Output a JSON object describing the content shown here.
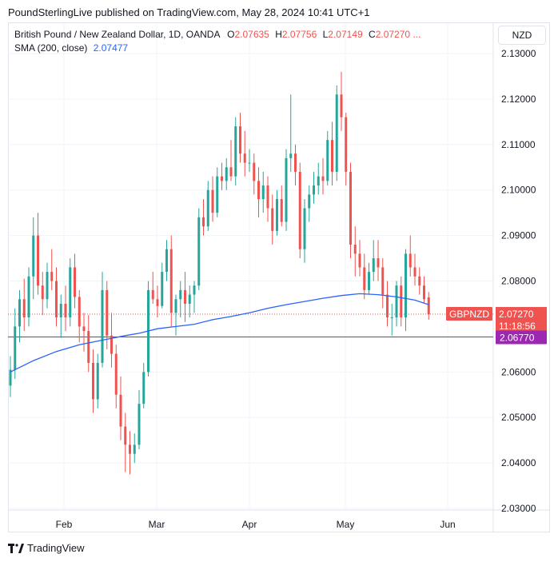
{
  "header": {
    "published": "PoundSterlingLive published on TradingView.com, May 28, 2024 10:41 UTC+1"
  },
  "legend": {
    "symbol": "British Pound / New Zealand Dollar, 1D, OANDA",
    "o_label": "O",
    "o_value": "2.07635",
    "h_label": "H",
    "h_value": "2.07756",
    "l_label": "L",
    "l_value": "2.07149",
    "c_label": "C",
    "c_value": "2.07270",
    "more": "...",
    "sma_label": "SMA (200, close)",
    "sma_value": "2.07477"
  },
  "currency_button": "NZD",
  "price_tags": {
    "symbol_tag": "GBPNZD",
    "last_price": "2.07270",
    "countdown": "11:18:56",
    "level_price": "2.06770"
  },
  "brand": {
    "name": "TradingView"
  },
  "colors": {
    "up": "#26a69a",
    "down": "#ef5350",
    "sma": "#2962ff",
    "level": "#9c27b0",
    "grid": "#f0f3fa"
  },
  "chart_data": {
    "type": "candlestick",
    "y_ticks": [
      "2.13000",
      "2.12000",
      "2.11000",
      "2.10000",
      "2.09000",
      "2.08000",
      "2.06000",
      "2.05000",
      "2.04000",
      "2.03000"
    ],
    "x_ticks": [
      "Feb",
      "Mar",
      "Apr",
      "May",
      "Jun"
    ],
    "ylim": [
      2.0295,
      2.1335
    ],
    "horizontal_level": 2.0677,
    "last_close": 2.0727,
    "candles": [
      {
        "o": 2.057,
        "h": 2.0635,
        "l": 2.0545,
        "c": 2.0605
      },
      {
        "o": 2.0605,
        "h": 2.074,
        "l": 2.0585,
        "c": 2.07
      },
      {
        "o": 2.07,
        "h": 2.078,
        "l": 2.0665,
        "c": 2.076
      },
      {
        "o": 2.076,
        "h": 2.0805,
        "l": 2.069,
        "c": 2.072
      },
      {
        "o": 2.072,
        "h": 2.083,
        "l": 2.07,
        "c": 2.081
      },
      {
        "o": 2.081,
        "h": 2.094,
        "l": 2.076,
        "c": 2.09
      },
      {
        "o": 2.09,
        "h": 2.095,
        "l": 2.077,
        "c": 2.079
      },
      {
        "o": 2.079,
        "h": 2.082,
        "l": 2.0725,
        "c": 2.076
      },
      {
        "o": 2.076,
        "h": 2.084,
        "l": 2.074,
        "c": 2.082
      },
      {
        "o": 2.082,
        "h": 2.087,
        "l": 2.078,
        "c": 2.08
      },
      {
        "o": 2.08,
        "h": 2.083,
        "l": 2.07,
        "c": 2.072
      },
      {
        "o": 2.072,
        "h": 2.077,
        "l": 2.0675,
        "c": 2.075
      },
      {
        "o": 2.075,
        "h": 2.079,
        "l": 2.069,
        "c": 2.072
      },
      {
        "o": 2.072,
        "h": 2.085,
        "l": 2.07,
        "c": 2.083
      },
      {
        "o": 2.083,
        "h": 2.086,
        "l": 2.074,
        "c": 2.0765
      },
      {
        "o": 2.0765,
        "h": 2.078,
        "l": 2.0665,
        "c": 2.07
      },
      {
        "o": 2.07,
        "h": 2.073,
        "l": 2.0645,
        "c": 2.069
      },
      {
        "o": 2.069,
        "h": 2.0725,
        "l": 2.06,
        "c": 2.062
      },
      {
        "o": 2.062,
        "h": 2.065,
        "l": 2.051,
        "c": 2.054
      },
      {
        "o": 2.054,
        "h": 2.064,
        "l": 2.052,
        "c": 2.062
      },
      {
        "o": 2.062,
        "h": 2.082,
        "l": 2.061,
        "c": 2.078
      },
      {
        "o": 2.078,
        "h": 2.08,
        "l": 2.065,
        "c": 2.068
      },
      {
        "o": 2.068,
        "h": 2.073,
        "l": 2.061,
        "c": 2.064
      },
      {
        "o": 2.064,
        "h": 2.066,
        "l": 2.052,
        "c": 2.055
      },
      {
        "o": 2.055,
        "h": 2.059,
        "l": 2.045,
        "c": 2.048
      },
      {
        "o": 2.048,
        "h": 2.051,
        "l": 2.038,
        "c": 2.044
      },
      {
        "o": 2.044,
        "h": 2.047,
        "l": 2.0375,
        "c": 2.042
      },
      {
        "o": 2.042,
        "h": 2.0465,
        "l": 2.04,
        "c": 2.044
      },
      {
        "o": 2.044,
        "h": 2.056,
        "l": 2.043,
        "c": 2.053
      },
      {
        "o": 2.053,
        "h": 2.062,
        "l": 2.052,
        "c": 2.06
      },
      {
        "o": 2.06,
        "h": 2.08,
        "l": 2.059,
        "c": 2.078
      },
      {
        "o": 2.078,
        "h": 2.082,
        "l": 2.075,
        "c": 2.076
      },
      {
        "o": 2.076,
        "h": 2.079,
        "l": 2.072,
        "c": 2.0745
      },
      {
        "o": 2.0745,
        "h": 2.084,
        "l": 2.074,
        "c": 2.082
      },
      {
        "o": 2.082,
        "h": 2.089,
        "l": 2.08,
        "c": 2.087
      },
      {
        "o": 2.087,
        "h": 2.09,
        "l": 2.07,
        "c": 2.073
      },
      {
        "o": 2.073,
        "h": 2.077,
        "l": 2.068,
        "c": 2.076
      },
      {
        "o": 2.076,
        "h": 2.08,
        "l": 2.072,
        "c": 2.078
      },
      {
        "o": 2.078,
        "h": 2.082,
        "l": 2.071,
        "c": 2.075
      },
      {
        "o": 2.075,
        "h": 2.079,
        "l": 2.072,
        "c": 2.077
      },
      {
        "o": 2.077,
        "h": 2.08,
        "l": 2.073,
        "c": 2.079
      },
      {
        "o": 2.079,
        "h": 2.096,
        "l": 2.078,
        "c": 2.094
      },
      {
        "o": 2.094,
        "h": 2.098,
        "l": 2.09,
        "c": 2.092
      },
      {
        "o": 2.092,
        "h": 2.102,
        "l": 2.091,
        "c": 2.1
      },
      {
        "o": 2.1,
        "h": 2.103,
        "l": 2.093,
        "c": 2.095
      },
      {
        "o": 2.095,
        "h": 2.105,
        "l": 2.094,
        "c": 2.103
      },
      {
        "o": 2.103,
        "h": 2.106,
        "l": 2.1,
        "c": 2.102
      },
      {
        "o": 2.102,
        "h": 2.107,
        "l": 2.1,
        "c": 2.105
      },
      {
        "o": 2.105,
        "h": 2.111,
        "l": 2.102,
        "c": 2.103
      },
      {
        "o": 2.103,
        "h": 2.116,
        "l": 2.101,
        "c": 2.114
      },
      {
        "o": 2.114,
        "h": 2.117,
        "l": 2.106,
        "c": 2.108
      },
      {
        "o": 2.108,
        "h": 2.113,
        "l": 2.103,
        "c": 2.106
      },
      {
        "o": 2.106,
        "h": 2.109,
        "l": 2.104,
        "c": 2.106
      },
      {
        "o": 2.106,
        "h": 2.108,
        "l": 2.099,
        "c": 2.102
      },
      {
        "o": 2.102,
        "h": 2.105,
        "l": 2.094,
        "c": 2.098
      },
      {
        "o": 2.098,
        "h": 2.104,
        "l": 2.095,
        "c": 2.101
      },
      {
        "o": 2.101,
        "h": 2.103,
        "l": 2.093,
        "c": 2.096
      },
      {
        "o": 2.096,
        "h": 2.099,
        "l": 2.088,
        "c": 2.091
      },
      {
        "o": 2.091,
        "h": 2.1,
        "l": 2.09,
        "c": 2.098
      },
      {
        "o": 2.098,
        "h": 2.101,
        "l": 2.092,
        "c": 2.093
      },
      {
        "o": 2.093,
        "h": 2.109,
        "l": 2.091,
        "c": 2.107
      },
      {
        "o": 2.107,
        "h": 2.121,
        "l": 2.104,
        "c": 2.108
      },
      {
        "o": 2.108,
        "h": 2.11,
        "l": 2.101,
        "c": 2.104
      },
      {
        "o": 2.104,
        "h": 2.106,
        "l": 2.085,
        "c": 2.087
      },
      {
        "o": 2.087,
        "h": 2.098,
        "l": 2.084,
        "c": 2.096
      },
      {
        "o": 2.096,
        "h": 2.101,
        "l": 2.093,
        "c": 2.099
      },
      {
        "o": 2.099,
        "h": 2.104,
        "l": 2.097,
        "c": 2.101
      },
      {
        "o": 2.101,
        "h": 2.106,
        "l": 2.099,
        "c": 2.103
      },
      {
        "o": 2.103,
        "h": 2.107,
        "l": 2.099,
        "c": 2.102
      },
      {
        "o": 2.102,
        "h": 2.113,
        "l": 2.101,
        "c": 2.111
      },
      {
        "o": 2.111,
        "h": 2.115,
        "l": 2.101,
        "c": 2.104
      },
      {
        "o": 2.104,
        "h": 2.123,
        "l": 2.102,
        "c": 2.121
      },
      {
        "o": 2.121,
        "h": 2.126,
        "l": 2.113,
        "c": 2.116
      },
      {
        "o": 2.116,
        "h": 2.117,
        "l": 2.101,
        "c": 2.104
      },
      {
        "o": 2.104,
        "h": 2.106,
        "l": 2.085,
        "c": 2.088
      },
      {
        "o": 2.088,
        "h": 2.092,
        "l": 2.081,
        "c": 2.086
      },
      {
        "o": 2.086,
        "h": 2.089,
        "l": 2.081,
        "c": 2.083
      },
      {
        "o": 2.083,
        "h": 2.086,
        "l": 2.076,
        "c": 2.078
      },
      {
        "o": 2.078,
        "h": 2.084,
        "l": 2.077,
        "c": 2.082
      },
      {
        "o": 2.082,
        "h": 2.089,
        "l": 2.08,
        "c": 2.085
      },
      {
        "o": 2.085,
        "h": 2.089,
        "l": 2.08,
        "c": 2.083
      },
      {
        "o": 2.083,
        "h": 2.085,
        "l": 2.074,
        "c": 2.077
      },
      {
        "o": 2.077,
        "h": 2.08,
        "l": 2.07,
        "c": 2.072
      },
      {
        "o": 2.072,
        "h": 2.075,
        "l": 2.068,
        "c": 2.072
      },
      {
        "o": 2.072,
        "h": 2.08,
        "l": 2.07,
        "c": 2.079
      },
      {
        "o": 2.079,
        "h": 2.081,
        "l": 2.07,
        "c": 2.072
      },
      {
        "o": 2.072,
        "h": 2.087,
        "l": 2.069,
        "c": 2.086
      },
      {
        "o": 2.086,
        "h": 2.09,
        "l": 2.081,
        "c": 2.083
      },
      {
        "o": 2.083,
        "h": 2.086,
        "l": 2.079,
        "c": 2.081
      },
      {
        "o": 2.081,
        "h": 2.083,
        "l": 2.077,
        "c": 2.079
      },
      {
        "o": 2.079,
        "h": 2.081,
        "l": 2.075,
        "c": 2.076
      },
      {
        "o": 2.0764,
        "h": 2.0776,
        "l": 2.0715,
        "c": 2.0727
      }
    ],
    "sma": [
      [
        0,
        2.06
      ],
      [
        5,
        2.0625
      ],
      [
        10,
        2.0645
      ],
      [
        15,
        2.066
      ],
      [
        20,
        2.067
      ],
      [
        25,
        2.068
      ],
      [
        28,
        2.0685
      ],
      [
        32,
        2.0695
      ],
      [
        36,
        2.07
      ],
      [
        40,
        2.0705
      ],
      [
        44,
        2.0715
      ],
      [
        48,
        2.0722
      ],
      [
        52,
        2.073
      ],
      [
        56,
        2.074
      ],
      [
        60,
        2.0748
      ],
      [
        64,
        2.0755
      ],
      [
        68,
        2.0762
      ],
      [
        72,
        2.0768
      ],
      [
        76,
        2.0772
      ],
      [
        80,
        2.077
      ],
      [
        84,
        2.0765
      ],
      [
        88,
        2.0758
      ],
      [
        91,
        2.0748
      ]
    ]
  }
}
